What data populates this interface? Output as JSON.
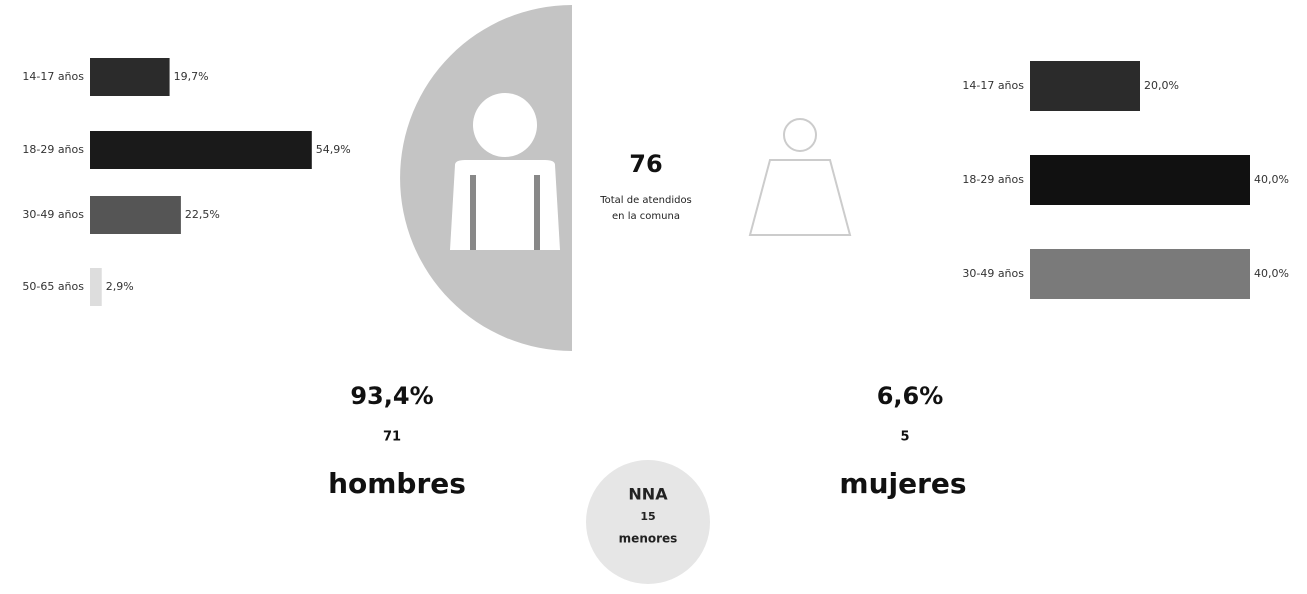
{
  "chart_data": [
    {
      "type": "bar",
      "orientation": "horizontal",
      "categories": [
        "14-17 años",
        "18-29 años",
        "30-49 años",
        "50-65 años"
      ],
      "values": [
        19.7,
        54.9,
        22.5,
        2.9
      ],
      "value_labels": [
        "19,7%",
        "54,9%",
        "22,5%",
        "2,9%"
      ],
      "colors": [
        "#2b2b2b",
        "#1a1a1a",
        "#555555",
        "#dddddd"
      ]
    },
    {
      "type": "bar",
      "orientation": "horizontal",
      "categories": [
        "14-17 años",
        "18-29 años",
        "30-49 años"
      ],
      "values": [
        20.0,
        40.0,
        40.0
      ],
      "value_labels": [
        "20,0%",
        "40,0%",
        "40,0%"
      ],
      "colors": [
        "#2b2b2b",
        "#111111",
        "#7a7a7a"
      ]
    }
  ],
  "total": {
    "value": "76",
    "label_line1": "Total de atendidos",
    "label_line2": "en la comuna"
  },
  "men": {
    "percent": "93,4%",
    "count": "71",
    "label": "hombres"
  },
  "women": {
    "percent": "6,6%",
    "count": "5",
    "label": "mujeres"
  },
  "minors": {
    "title": "NNA",
    "count": "15",
    "label": "menores"
  }
}
